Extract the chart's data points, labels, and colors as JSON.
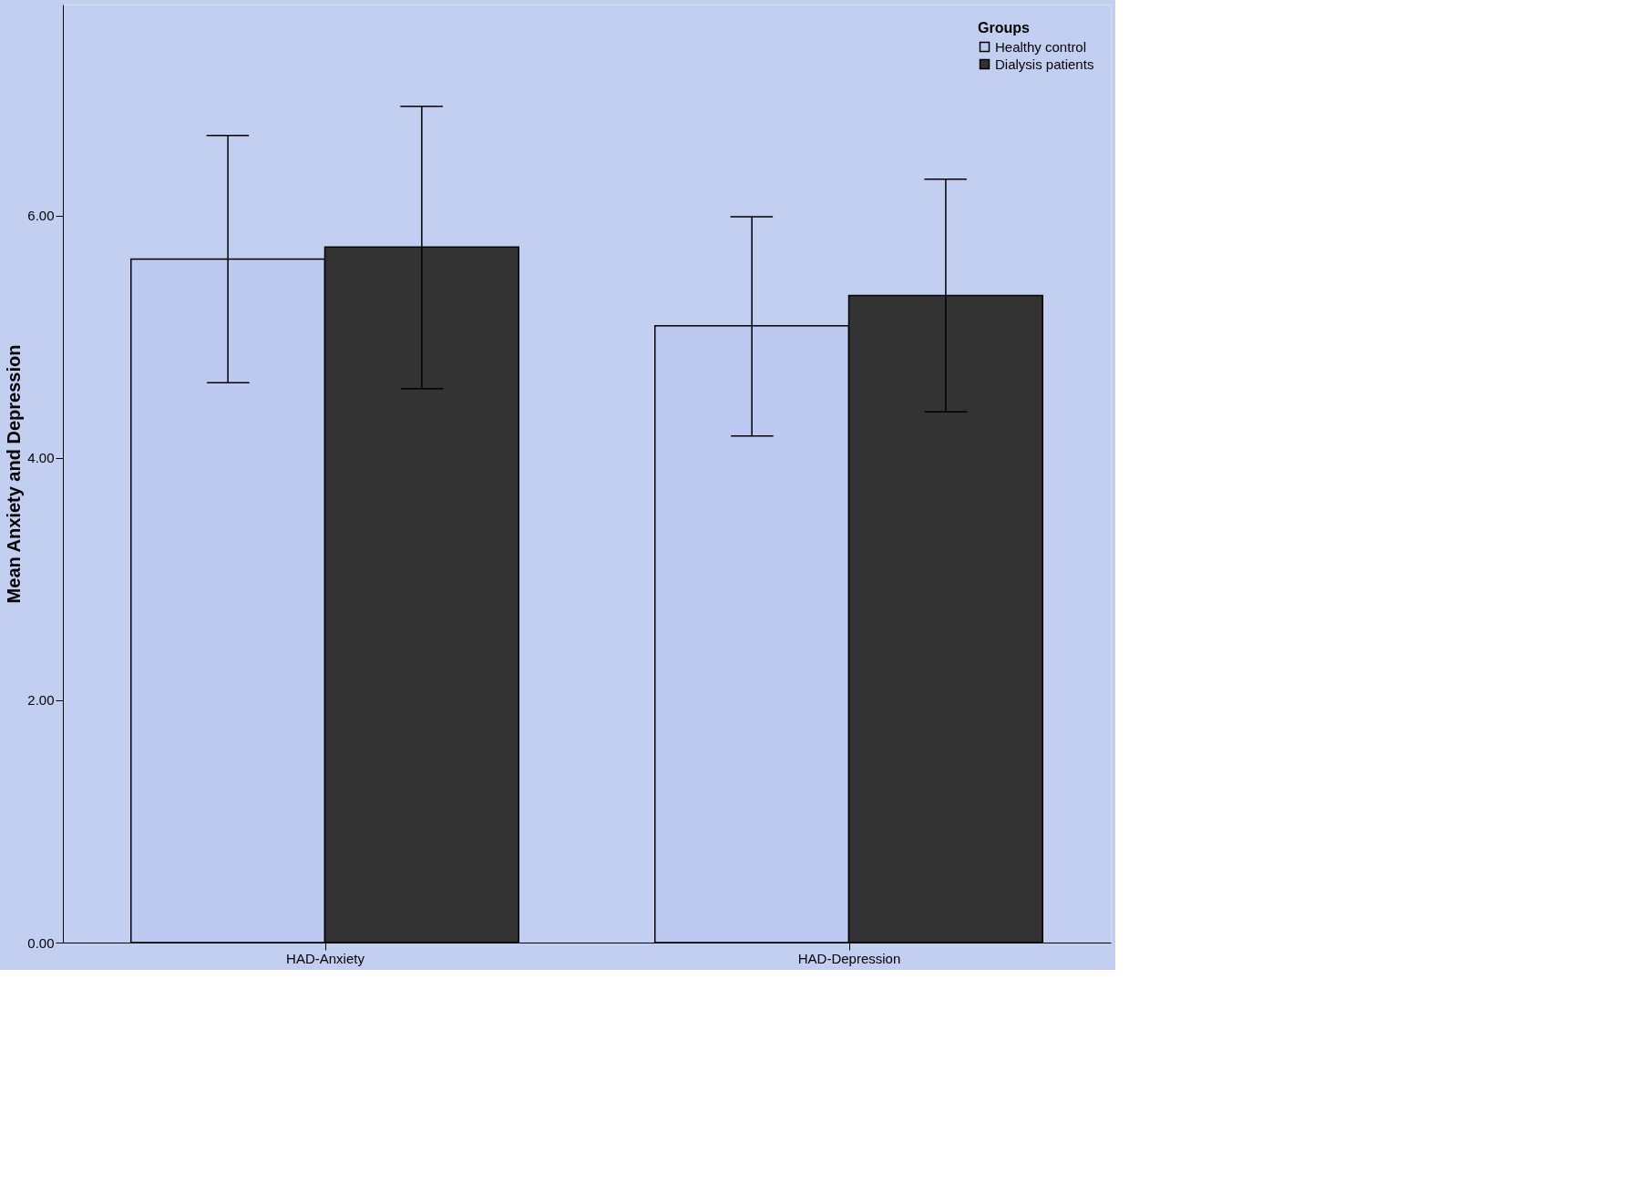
{
  "chart_data": {
    "type": "bar",
    "ylabel": "Mean Anxiety and Depression",
    "legend_title": "Groups",
    "categories": [
      "HAD-Anxiety",
      "HAD-Depression"
    ],
    "series": [
      {
        "name": "Healthy control",
        "color": "#bccaf2",
        "values": [
          5.64,
          5.09
        ],
        "errors": [
          [
            4.62,
            6.66
          ],
          [
            4.18,
            5.99
          ]
        ]
      },
      {
        "name": "Dialysis patients",
        "color": "#333333",
        "values": [
          5.74,
          5.34
        ],
        "errors": [
          [
            4.57,
            6.9
          ],
          [
            4.38,
            6.3
          ]
        ]
      }
    ],
    "ylim": [
      0,
      7.74
    ],
    "yticks": [
      {
        "value": 0,
        "label": "0.00"
      },
      {
        "value": 2,
        "label": "2.00"
      },
      {
        "value": 4,
        "label": "4.00"
      },
      {
        "value": 6,
        "label": "6.00"
      }
    ],
    "grid": false,
    "legend": "top right"
  }
}
